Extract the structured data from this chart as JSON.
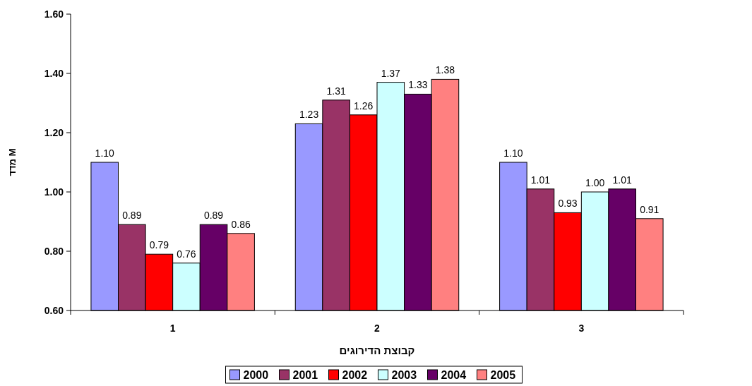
{
  "chart_data": {
    "type": "bar",
    "xlabel": "קבוצת הדירוגים",
    "ylabel": "מדד M",
    "categories": [
      "1",
      "2",
      "3"
    ],
    "ylim": [
      0.6,
      1.6
    ],
    "yticks": [
      {
        "value": 0.6,
        "label": "0.60"
      },
      {
        "value": 0.8,
        "label": "0.80"
      },
      {
        "value": 1.0,
        "label": "1.00"
      },
      {
        "value": 1.2,
        "label": "1.20"
      },
      {
        "value": 1.4,
        "label": "1.40"
      },
      {
        "value": 1.6,
        "label": "1.60"
      }
    ],
    "series": [
      {
        "name": "2000",
        "color": "#9999ff",
        "values": [
          1.1,
          1.23,
          1.1
        ],
        "value_labels": [
          "1.10",
          "1.23",
          "1.10"
        ]
      },
      {
        "name": "2001",
        "color": "#993366",
        "values": [
          0.89,
          1.31,
          1.01
        ],
        "value_labels": [
          "0.89",
          "1.31",
          "1.01"
        ]
      },
      {
        "name": "2002",
        "color": "#ff0000",
        "values": [
          0.79,
          1.26,
          0.93
        ],
        "value_labels": [
          "0.79",
          "1.26",
          "0.93"
        ]
      },
      {
        "name": "2003",
        "color": "#ccffff",
        "values": [
          0.76,
          1.37,
          1.0
        ],
        "value_labels": [
          "0.76",
          "1.37",
          "1.00"
        ]
      },
      {
        "name": "2004",
        "color": "#660066",
        "values": [
          0.89,
          1.33,
          1.01
        ],
        "value_labels": [
          "0.89",
          "1.33",
          "1.01"
        ]
      },
      {
        "name": "2005",
        "color": "#ff8080",
        "values": [
          0.86,
          1.38,
          0.91
        ],
        "value_labels": [
          "0.86",
          "1.38",
          "0.91"
        ]
      }
    ],
    "legend": "bottom",
    "grid": false
  }
}
